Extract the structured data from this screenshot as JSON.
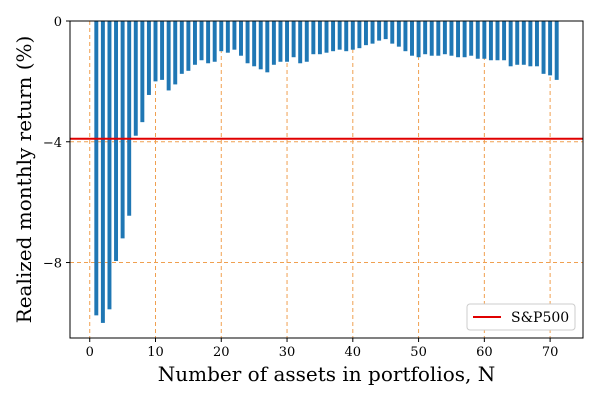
{
  "chart_data": {
    "type": "bar",
    "xlabel": "Number of assets in portfolios, N",
    "ylabel": "Realized monthly return (%)",
    "xlim": [
      -3,
      75
    ],
    "ylim": [
      -10.5,
      0
    ],
    "x_ticks": [
      0,
      10,
      20,
      30,
      40,
      50,
      60,
      70
    ],
    "y_ticks": [
      0,
      -4,
      -8
    ],
    "y_tick_labels": [
      "0",
      "−4",
      "−8"
    ],
    "grid": true,
    "legend": {
      "placement": "lower-right",
      "entries": [
        "S&P500"
      ]
    },
    "colors": {
      "bars": "#1f77b4",
      "reference_line": "#e00000",
      "grid": "#f0a050"
    },
    "x": [
      1,
      2,
      3,
      4,
      5,
      6,
      7,
      8,
      9,
      10,
      11,
      12,
      13,
      14,
      15,
      16,
      17,
      18,
      19,
      20,
      21,
      22,
      23,
      24,
      25,
      26,
      27,
      28,
      29,
      30,
      31,
      32,
      33,
      34,
      35,
      36,
      37,
      38,
      39,
      40,
      41,
      42,
      43,
      44,
      45,
      46,
      47,
      48,
      49,
      50,
      51,
      52,
      53,
      54,
      55,
      56,
      57,
      58,
      59,
      60,
      61,
      62,
      63,
      64,
      65,
      66,
      67,
      68,
      69,
      70,
      71
    ],
    "series": [
      {
        "values": [
          -9.75,
          -10.0,
          -9.55,
          -7.95,
          -7.2,
          -6.45,
          -3.8,
          -3.35,
          -2.45,
          -2.0,
          -1.95,
          -2.3,
          -2.1,
          -1.75,
          -1.65,
          -1.45,
          -1.3,
          -1.4,
          -1.35,
          -1.0,
          -1.05,
          -0.95,
          -1.15,
          -1.4,
          -1.5,
          -1.6,
          -1.7,
          -1.45,
          -1.35,
          -1.35,
          -1.2,
          -1.4,
          -1.35,
          -1.1,
          -1.1,
          -1.05,
          -1.0,
          -0.95,
          -1.0,
          -0.95,
          -0.9,
          -0.8,
          -0.75,
          -0.65,
          -0.6,
          -0.75,
          -0.85,
          -1.0,
          -1.15,
          -1.2,
          -1.1,
          -1.15,
          -1.15,
          -1.1,
          -1.15,
          -1.2,
          -1.2,
          -1.15,
          -1.25,
          -1.25,
          -1.3,
          -1.3,
          -1.3,
          -1.5,
          -1.45,
          -1.45,
          -1.5,
          -1.5,
          -1.75,
          -1.8,
          -1.95
        ]
      }
    ],
    "reference_lines": [
      {
        "name": "S&P500",
        "y": -3.9
      }
    ]
  }
}
